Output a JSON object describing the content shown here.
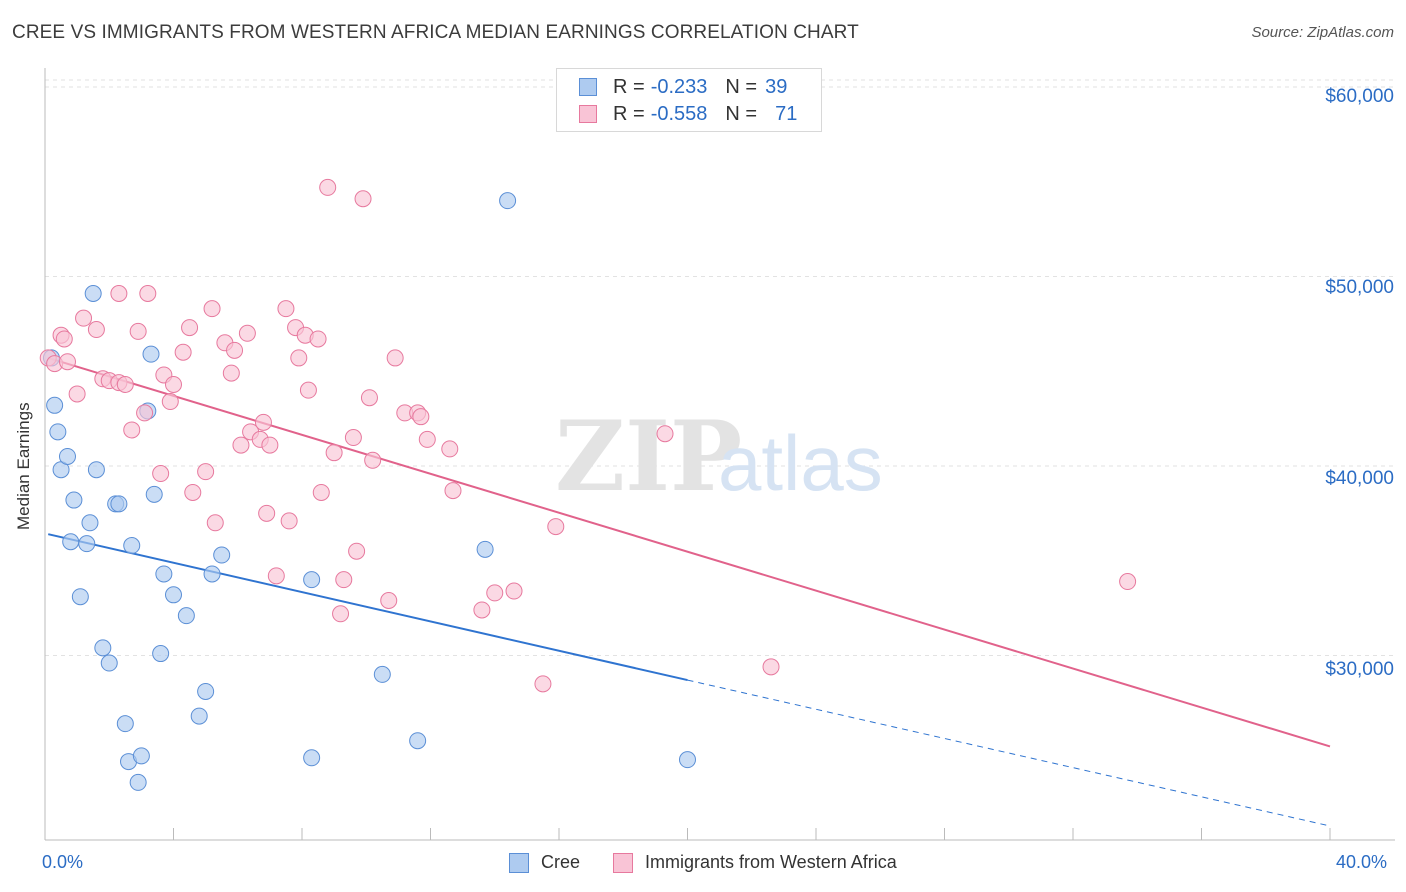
{
  "title": "CREE VS IMMIGRANTS FROM WESTERN AFRICA MEDIAN EARNINGS CORRELATION CHART",
  "source": "Source: ZipAtlas.com",
  "watermark": {
    "zip": "ZIP",
    "atlas": "atlas"
  },
  "legend": {
    "rows": [
      {
        "r_label": "R =",
        "r_value": "-0.233",
        "n_label": "N =",
        "n_value": "39",
        "color": "#aecbf0",
        "border": "#5b8fd6"
      },
      {
        "r_label": "R =",
        "r_value": "-0.558",
        "n_label": "N =",
        "n_value": "71",
        "color": "#f9c4d6",
        "border": "#e7799e"
      }
    ]
  },
  "bottom_legend": [
    {
      "label": "Cree",
      "color": "#aecbf0",
      "border": "#5b8fd6"
    },
    {
      "label": "Immigrants from Western Africa",
      "color": "#f9c4d6",
      "border": "#e7799e"
    }
  ],
  "chart_data": {
    "type": "scatter",
    "ylabel": "Median Earnings",
    "x_tick_labels": {
      "min": "0.0%",
      "max": "40.0%"
    },
    "y_tick_labels": [
      "$60,000",
      "$50,000",
      "$40,000",
      "$30,000"
    ],
    "y_ticks": [
      60000,
      50000,
      40000,
      30000
    ],
    "xlim": [
      0,
      40
    ],
    "ylim": [
      21000,
      61000
    ],
    "grid": true,
    "legend_position": "top-center",
    "series": [
      {
        "name": "Cree",
        "color": "#aecbf0",
        "stroke": "#5b8fd6",
        "line_color": "#2f74d0",
        "trend": {
          "x0": 0.1,
          "y0": 36400,
          "x1": 20.0,
          "y1": 28700,
          "dash_x1": 40.0,
          "dash_y1": 21000
        },
        "points": [
          [
            0.2,
            45700
          ],
          [
            0.3,
            43200
          ],
          [
            0.4,
            41800
          ],
          [
            0.5,
            39800
          ],
          [
            0.7,
            40500
          ],
          [
            0.9,
            38200
          ],
          [
            1.4,
            37000
          ],
          [
            0.8,
            36000
          ],
          [
            1.3,
            35900
          ],
          [
            1.1,
            33100
          ],
          [
            1.5,
            49100
          ],
          [
            1.6,
            39800
          ],
          [
            2.2,
            38000
          ],
          [
            2.3,
            38000
          ],
          [
            2.7,
            35800
          ],
          [
            1.8,
            30400
          ],
          [
            2.0,
            29600
          ],
          [
            2.5,
            26400
          ],
          [
            2.6,
            24400
          ],
          [
            3.0,
            24700
          ],
          [
            2.9,
            23300
          ],
          [
            3.2,
            42900
          ],
          [
            3.4,
            38500
          ],
          [
            3.3,
            45900
          ],
          [
            3.7,
            34300
          ],
          [
            4.0,
            33200
          ],
          [
            4.4,
            32100
          ],
          [
            3.6,
            30100
          ],
          [
            4.8,
            26800
          ],
          [
            5.0,
            28100
          ],
          [
            5.2,
            34300
          ],
          [
            5.5,
            35300
          ],
          [
            8.3,
            34000
          ],
          [
            8.3,
            24600
          ],
          [
            10.5,
            29000
          ],
          [
            11.6,
            25500
          ],
          [
            13.7,
            35600
          ],
          [
            14.4,
            54000
          ],
          [
            20.0,
            24500
          ]
        ]
      },
      {
        "name": "Immigrants from Western Africa",
        "color": "#f9c4d6",
        "stroke": "#e7799e",
        "line_color": "#e1628b",
        "trend": {
          "x0": 0.1,
          "y0": 45700,
          "x1": 40.0,
          "y1": 25200
        },
        "points": [
          [
            0.1,
            45700
          ],
          [
            0.3,
            45400
          ],
          [
            0.5,
            46900
          ],
          [
            0.6,
            46700
          ],
          [
            0.7,
            45500
          ],
          [
            1.0,
            43800
          ],
          [
            1.2,
            47800
          ],
          [
            1.6,
            47200
          ],
          [
            1.8,
            44600
          ],
          [
            2.0,
            44500
          ],
          [
            2.3,
            44400
          ],
          [
            2.3,
            49100
          ],
          [
            2.5,
            44300
          ],
          [
            2.7,
            41900
          ],
          [
            2.9,
            47100
          ],
          [
            3.1,
            42800
          ],
          [
            3.7,
            44800
          ],
          [
            3.6,
            39600
          ],
          [
            4.0,
            44300
          ],
          [
            3.9,
            43400
          ],
          [
            4.3,
            46000
          ],
          [
            4.5,
            47300
          ],
          [
            4.6,
            38600
          ],
          [
            5.0,
            39700
          ],
          [
            5.2,
            48300
          ],
          [
            5.3,
            37000
          ],
          [
            5.6,
            46500
          ],
          [
            5.8,
            44900
          ],
          [
            5.9,
            46100
          ],
          [
            6.1,
            41100
          ],
          [
            6.3,
            47000
          ],
          [
            6.4,
            41800
          ],
          [
            6.7,
            41400
          ],
          [
            6.8,
            42300
          ],
          [
            6.9,
            37500
          ],
          [
            7.2,
            34200
          ],
          [
            7.5,
            48300
          ],
          [
            7.6,
            37100
          ],
          [
            7.8,
            47300
          ],
          [
            7.9,
            45700
          ],
          [
            8.1,
            46900
          ],
          [
            8.2,
            44000
          ],
          [
            8.5,
            46700
          ],
          [
            8.6,
            38600
          ],
          [
            8.8,
            54700
          ],
          [
            9.0,
            40700
          ],
          [
            9.2,
            32200
          ],
          [
            9.3,
            34000
          ],
          [
            9.6,
            41500
          ],
          [
            9.7,
            35500
          ],
          [
            10.1,
            43600
          ],
          [
            10.2,
            40300
          ],
          [
            10.7,
            32900
          ],
          [
            10.9,
            45700
          ],
          [
            11.2,
            42800
          ],
          [
            11.6,
            42800
          ],
          [
            11.7,
            42600
          ],
          [
            11.9,
            41400
          ],
          [
            12.6,
            40900
          ],
          [
            12.7,
            38700
          ],
          [
            13.6,
            32400
          ],
          [
            14.6,
            33400
          ],
          [
            15.5,
            28500
          ],
          [
            15.9,
            36800
          ],
          [
            19.3,
            41700
          ],
          [
            22.6,
            29400
          ],
          [
            33.7,
            33900
          ],
          [
            9.9,
            54100
          ],
          [
            7.0,
            41100
          ],
          [
            3.2,
            49100
          ],
          [
            14.0,
            33300
          ]
        ]
      }
    ]
  }
}
